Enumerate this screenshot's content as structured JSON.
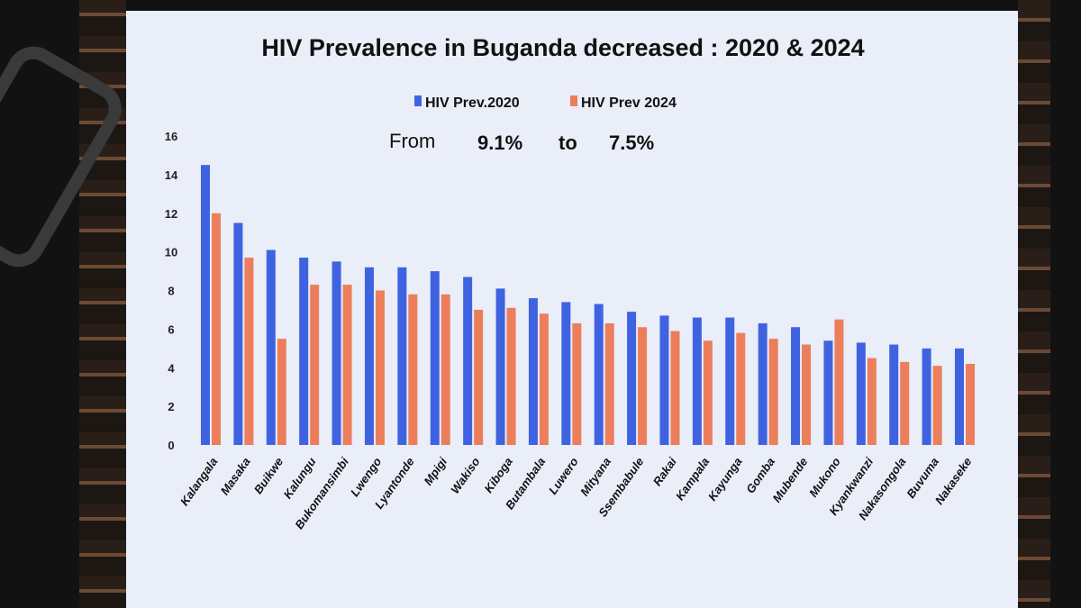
{
  "chart_data": {
    "type": "bar",
    "title": "HIV Prevalence in Buganda decreased : 2020 & 2024",
    "subtitle": {
      "prefix": "From",
      "from": "9.1%",
      "mid": "to",
      "to": "7.5%"
    },
    "xlabel": "",
    "ylabel": "",
    "ylim": [
      0,
      16
    ],
    "yticks": [
      "0",
      "2",
      "4",
      "6",
      "8",
      "10",
      "12",
      "14",
      "16"
    ],
    "grid": false,
    "legend": "top-center",
    "categories": [
      "Kalangala",
      "Masaka",
      "Buikwe",
      "Kalungu",
      "Bukomansimbi",
      "Lwengo",
      "Lyantonde",
      "Mpigi",
      "Wakiso",
      "Kiboga",
      "Butambala",
      "Luwero",
      "Mityana",
      "Ssembabule",
      "Rakai",
      "Kampala",
      "Kayunga",
      "Gomba",
      "Mubende",
      "Mukono",
      "Kyankwanzi",
      "Nakasongola",
      "Buvuma",
      "Nakaseke"
    ],
    "series": [
      {
        "name": "HIV Prev.2020",
        "color": "#3f63e0",
        "values": [
          14.5,
          11.5,
          10.1,
          9.7,
          9.5,
          9.2,
          9.2,
          9.0,
          8.7,
          8.1,
          7.6,
          7.4,
          7.3,
          6.9,
          6.7,
          6.6,
          6.6,
          6.3,
          6.1,
          5.4,
          5.3,
          5.2,
          5.0,
          5.0
        ]
      },
      {
        "name": "HIV Prev 2024",
        "color": "#ec7e5c",
        "values": [
          12.0,
          9.7,
          5.5,
          8.3,
          8.3,
          8.0,
          7.8,
          7.8,
          7.0,
          7.1,
          6.8,
          6.3,
          6.3,
          6.1,
          5.9,
          5.4,
          5.8,
          5.5,
          5.2,
          6.5,
          4.5,
          4.3,
          4.1,
          4.2
        ]
      }
    ]
  }
}
